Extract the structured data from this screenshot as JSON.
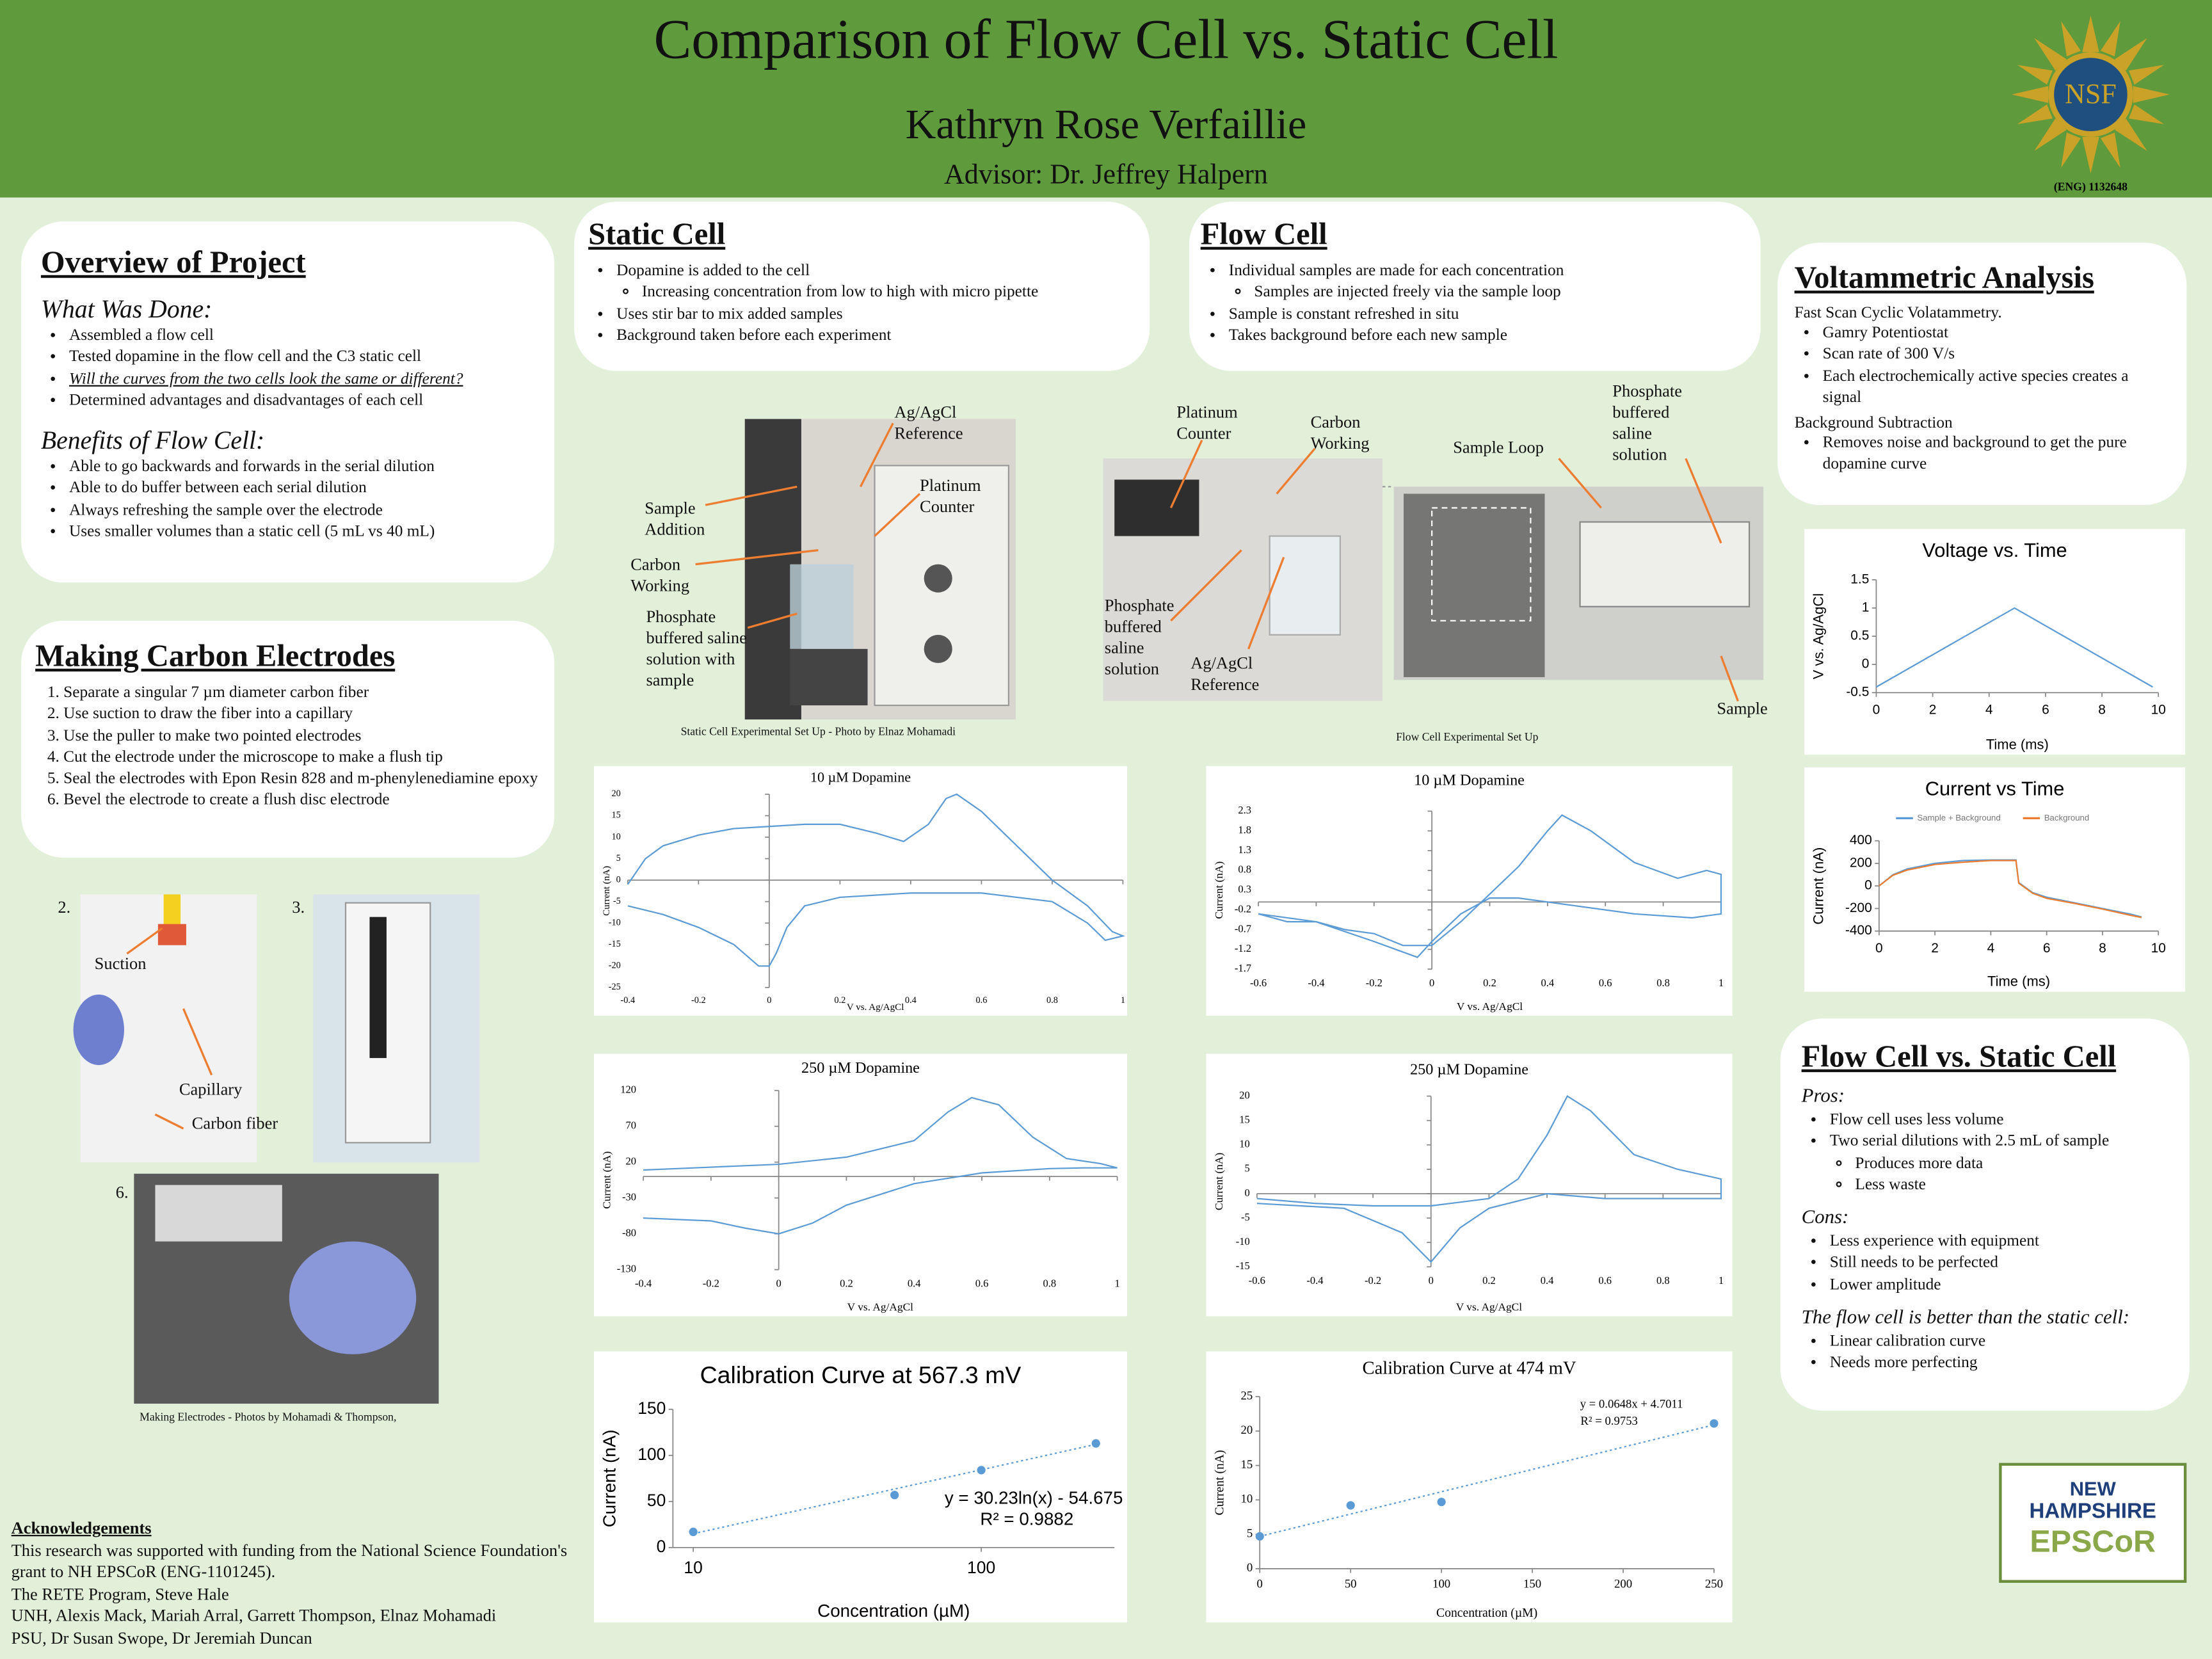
{
  "header": {
    "title": "Comparison of Flow Cell vs. Static Cell",
    "author": "Kathryn Rose Verfaillie",
    "advisor": "Advisor: Dr. Jeffrey Halpern",
    "logo_text": "NSF",
    "grant": "(ENG) 1132648"
  },
  "overview": {
    "title": "Overview of Project",
    "blocks": [
      {
        "heading": "What Was Done:",
        "items": [
          "Assembled a flow cell",
          "Tested dopamine in the flow cell and the C3 static cell",
          "Will the curves from the two cells look the same or different?",
          "Determined advantages and disadvantages of each cell"
        ]
      },
      {
        "heading": "Benefits of Flow Cell:",
        "items": [
          "Able to go backwards and forwards in the serial dilution",
          "Able to do buffer between each serial dilution",
          "Always refreshing the sample over the electrode",
          "Uses smaller volumes than a static cell (5 mL vs 40 mL)"
        ]
      }
    ]
  },
  "electrodes": {
    "title": "Making Carbon Electrodes",
    "items": [
      "Separate a singular 7 µm diameter carbon fiber",
      "Use suction to draw the fiber into a capillary",
      "Use the puller to make two pointed electrodes",
      "Cut the electrode under the microscope to make a flush tip",
      "Seal the electrodes with Epon Resin 828 and m-phenylenediamine epoxy",
      "Bevel the electrode to create a flush disc electrode"
    ]
  },
  "static_cell": {
    "title": "Static Cell",
    "items": [
      "Dopamine is added to the cell",
      [
        "Increasing concentration from low to high with micro pipette"
      ],
      "Uses stir bar to mix added samples",
      "Background taken before each experiment"
    ]
  },
  "flow_cell": {
    "title": "Flow Cell",
    "items": [
      "Individual samples are made for each concentration",
      [
        "Samples are injected freely via the sample loop"
      ],
      "Sample is constant refreshed in situ",
      "Takes background before each new sample"
    ]
  },
  "voltammetric": {
    "title": "Voltammetric Analysis",
    "blocks": [
      {
        "heading": "Fast Scan Cyclic Volatammetry.",
        "items": [
          "Gamry Potentiostat",
          "Scan rate of 300 V/s",
          "Each electrochemically active species creates a signal"
        ]
      },
      {
        "heading": "Background Subtraction",
        "items": [
          "Removes noise and background to get the pure dopamine curve"
        ]
      }
    ]
  },
  "comparison": {
    "title": "Flow Cell vs. Static Cell",
    "blocks": [
      {
        "heading": "Pros:",
        "items": [
          "Flow cell uses less volume",
          "Two serial dilutions with 2.5 mL of sample",
          [
            "Produces more data",
            "Less waste"
          ]
        ]
      },
      {
        "heading": "Cons:",
        "items": [
          "Less experience with equipment",
          "Still needs to be perfected",
          "Lower amplitude"
        ]
      },
      {
        "heading": "The flow cell is better than the static cell:",
        "items": [
          "Linear calibration curve",
          "Needs more perfecting"
        ]
      }
    ]
  },
  "static_photo": {
    "labels": [
      "Ag/AgCl Reference",
      "Platinum Counter",
      "Sample Addition",
      "Carbon Working",
      "Phosphate buffered saline solution  with sample"
    ],
    "caption": "Static Cell Experimental Set Up - Photo by Elnaz Mohamadi"
  },
  "flow_photo": {
    "labels": [
      "Platinum Counter",
      "Carbon Working",
      "Sample Loop",
      "Phosphate buffered saline solution",
      "Phosphate buffered saline solution",
      "Ag/AgCl Reference",
      "Sample"
    ],
    "caption": "Flow Cell Experimental Set Up"
  },
  "electrode_photos": {
    "labels": [
      "2.",
      "3.",
      "6.",
      "Suction",
      "Capillary",
      "Carbon fiber"
    ],
    "caption": "Making Electrodes  - Photos by Mohamadi & Thompson,"
  },
  "acknowledgements": {
    "title": "Acknowledgements",
    "lines": [
      "This research was supported with funding from the National Science Foundation's grant to NH EPSCoR (ENG-1101245).",
      "The RETE Program, Steve Hale",
      "UNH, Alexis Mack, Mariah Arral, Garrett Thompson, Elnaz Mohamadi",
      "PSU, Dr Susan Swope, Dr Jeremiah Duncan"
    ]
  },
  "epscor_logo": {
    "lines": [
      "NEW",
      "HAMPSHIRE",
      "EPSCoR"
    ]
  },
  "chart_data": [
    {
      "type": "line",
      "title": "10 µM Dopamine",
      "x_label": "V vs. Ag/AgCl",
      "y_label": "Current (nA)",
      "axes_at_zero": true,
      "x": [
        -0.4,
        -0.35,
        -0.3,
        -0.2,
        -0.1,
        0,
        0.1,
        0.2,
        0.3,
        0.38,
        0.45,
        0.5,
        0.53,
        0.6,
        0.7,
        0.8,
        0.9,
        0.97,
        1,
        0.95,
        0.9,
        0.8,
        0.6,
        0.4,
        0.2,
        0.1,
        0.05,
        0.02,
        0,
        -0.03,
        -0.1,
        -0.2,
        -0.3,
        -0.4
      ],
      "series": [
        {
          "color": "#5b9bd5",
          "values": [
            -1,
            5,
            8,
            10.5,
            12,
            12.5,
            13,
            13,
            11,
            9,
            13,
            19,
            20,
            16,
            8,
            0,
            -6,
            -12,
            -13,
            -14,
            -10,
            -5,
            -3,
            -3,
            -4,
            -6,
            -11,
            -17,
            -20,
            -20,
            -15,
            -11,
            -8,
            -6
          ]
        }
      ],
      "xlim": [
        -0.4,
        1
      ],
      "ylim": [
        -25,
        20
      ],
      "xticks": [
        -0.4,
        -0.2,
        0,
        0.2,
        0.4,
        0.6,
        0.8,
        1
      ],
      "yticks": [
        -25,
        -20,
        -15,
        -10,
        -5,
        0,
        5,
        10,
        15,
        20
      ]
    },
    {
      "type": "line",
      "title": "10 µM Dopamine",
      "x_label": "V vs. Ag/AgCl",
      "y_label": "Current (nA)",
      "axes_at_zero": true,
      "x": [
        -0.6,
        -0.5,
        -0.4,
        -0.3,
        -0.2,
        -0.1,
        0,
        0.1,
        0.2,
        0.3,
        0.4,
        0.45,
        0.5,
        0.55,
        0.7,
        0.85,
        0.95,
        1,
        1,
        0.9,
        0.7,
        0.5,
        0.3,
        0.2,
        0.1,
        0,
        -0.05,
        -0.2,
        -0.4,
        -0.6
      ],
      "series": [
        {
          "color": "#5b9bd5",
          "values": [
            -0.3,
            -0.5,
            -0.5,
            -0.7,
            -0.8,
            -1.1,
            -1.1,
            -0.5,
            0.2,
            0.9,
            1.8,
            2.2,
            2.0,
            1.8,
            1.0,
            0.6,
            0.8,
            0.7,
            -0.3,
            -0.4,
            -0.3,
            -0.1,
            0.1,
            0.1,
            -0.3,
            -1.0,
            -1.4,
            -1.0,
            -0.5,
            -0.3
          ]
        }
      ],
      "xlim": [
        -0.6,
        1
      ],
      "ylim": [
        -1.7,
        2.3
      ],
      "xticks": [
        -0.6,
        -0.4,
        -0.2,
        0,
        0.2,
        0.4,
        0.6,
        0.8,
        1
      ],
      "yticks": [
        -1.7,
        -1.2,
        -0.7,
        -0.2,
        0.3,
        0.8,
        1.3,
        1.8,
        2.3
      ]
    },
    {
      "type": "line",
      "title": "250 µM Dopamine",
      "x_label": "V vs. Ag/AgCl",
      "y_label": "Current (nA)",
      "axes_at_zero": true,
      "x": [
        -0.4,
        -0.2,
        0,
        0.2,
        0.4,
        0.5,
        0.57,
        0.65,
        0.75,
        0.85,
        0.95,
        1,
        0.9,
        0.8,
        0.6,
        0.4,
        0.2,
        0.1,
        0,
        -0.1,
        -0.2,
        -0.4
      ],
      "series": [
        {
          "color": "#5b9bd5",
          "values": [
            9,
            13,
            17,
            27,
            50,
            90,
            110,
            100,
            55,
            25,
            18,
            12,
            12,
            11,
            5,
            -10,
            -40,
            -65,
            -80,
            -72,
            -62,
            -58
          ]
        }
      ],
      "xlim": [
        -0.4,
        1
      ],
      "ylim": [
        -130,
        120
      ],
      "xticks": [
        -0.4,
        -0.2,
        0,
        0.2,
        0.4,
        0.6,
        0.8,
        1
      ],
      "yticks": [
        -130,
        -80,
        -30,
        20,
        70,
        120
      ]
    },
    {
      "type": "line",
      "title": "250 µM Dopamine",
      "x_label": "V vs. Ag/AgCl",
      "y_label": "Current (nA)",
      "axes_at_zero": true,
      "x": [
        -0.6,
        -0.4,
        -0.2,
        0,
        0.2,
        0.3,
        0.4,
        0.47,
        0.55,
        0.7,
        0.85,
        1,
        1,
        0.8,
        0.6,
        0.4,
        0.2,
        0.1,
        0,
        -0.1,
        -0.3,
        -0.6
      ],
      "series": [
        {
          "color": "#5b9bd5",
          "values": [
            -1,
            -2,
            -2.5,
            -2.5,
            -1,
            3,
            12,
            20,
            17,
            8,
            5,
            3,
            -1,
            -1,
            -1,
            0,
            -3,
            -7,
            -14,
            -8,
            -3,
            -2
          ]
        }
      ],
      "xlim": [
        -0.6,
        1
      ],
      "ylim": [
        -15,
        20
      ],
      "xticks": [
        -0.6,
        -0.4,
        -0.2,
        0,
        0.2,
        0.4,
        0.6,
        0.8,
        1
      ],
      "yticks": [
        -15,
        -10,
        -5,
        0,
        5,
        10,
        15,
        20
      ]
    },
    {
      "type": "scatter",
      "title": "Calibration Curve at 567.3 mV",
      "x_label": "Concentration (µM)",
      "y_label": "Current (nA)",
      "xscale": "log",
      "x": [
        10,
        50,
        100,
        250
      ],
      "series": [
        {
          "color": "#5b9bd5",
          "values": [
            17,
            57,
            84,
            113
          ]
        }
      ],
      "trendline": {
        "x": [
          10,
          250
        ],
        "values": [
          15,
          112
        ]
      },
      "annotations": [
        "y = 30.23ln(x) - 54.675",
        "R² = 0.9882"
      ],
      "xlim": [
        8.5,
        290
      ],
      "ylim": [
        0,
        150
      ],
      "xticks": [
        10,
        100
      ],
      "yticks": [
        0,
        50,
        100,
        150
      ]
    },
    {
      "type": "scatter",
      "title": "Calibration Curve at 474 mV",
      "x_label": "Concentration (µM)",
      "y_label": "Current (nA)",
      "x": [
        0,
        50,
        100,
        250
      ],
      "series": [
        {
          "color": "#5b9bd5",
          "values": [
            4.7,
            9.2,
            9.7,
            21.1
          ]
        }
      ],
      "trendline": {
        "x": [
          0,
          250
        ],
        "values": [
          4.7,
          20.9
        ]
      },
      "annotations": [
        "y = 0.0648x + 4.7011",
        "R² = 0.9753"
      ],
      "xlim": [
        0,
        250
      ],
      "ylim": [
        0,
        25
      ],
      "xticks": [
        0,
        50,
        100,
        150,
        200,
        250
      ],
      "yticks": [
        0,
        5,
        10,
        15,
        20,
        25
      ]
    },
    {
      "type": "line",
      "title": "Voltage vs. Time",
      "x_label": "Time (ms)",
      "y_label": "V vs. Ag/AgCl",
      "x": [
        0,
        4.9,
        9.8
      ],
      "series": [
        {
          "color": "#5b9bd5",
          "values": [
            -0.4,
            1.0,
            -0.4
          ]
        }
      ],
      "xlim": [
        0,
        10
      ],
      "ylim": [
        -0.5,
        1.5
      ],
      "xticks": [
        0,
        2,
        4,
        6,
        8,
        10
      ],
      "yticks": [
        -0.5,
        0,
        0.5,
        1,
        1.5
      ]
    },
    {
      "type": "line",
      "title": "Current vs Time",
      "x_label": "Time (ms)",
      "y_label": "Current (nA)",
      "x": [
        0,
        0.5,
        1,
        2,
        3,
        4,
        4.9,
        5,
        5.5,
        6,
        7,
        8,
        9,
        9.4
      ],
      "series": [
        {
          "name": "Sample + Background",
          "color": "#5b9bd5",
          "values": [
            0,
            100,
            150,
            200,
            225,
            230,
            230,
            30,
            -60,
            -100,
            -150,
            -200,
            -250,
            -275
          ]
        },
        {
          "name": "Background",
          "color": "#ed7d31",
          "values": [
            0,
            95,
            140,
            190,
            210,
            225,
            225,
            25,
            -65,
            -110,
            -155,
            -205,
            -260,
            -280
          ]
        }
      ],
      "xlim": [
        0,
        10
      ],
      "ylim": [
        -400,
        400
      ],
      "xticks": [
        0,
        2,
        4,
        6,
        8,
        10
      ],
      "yticks": [
        -400,
        -200,
        0,
        200,
        400
      ]
    }
  ]
}
